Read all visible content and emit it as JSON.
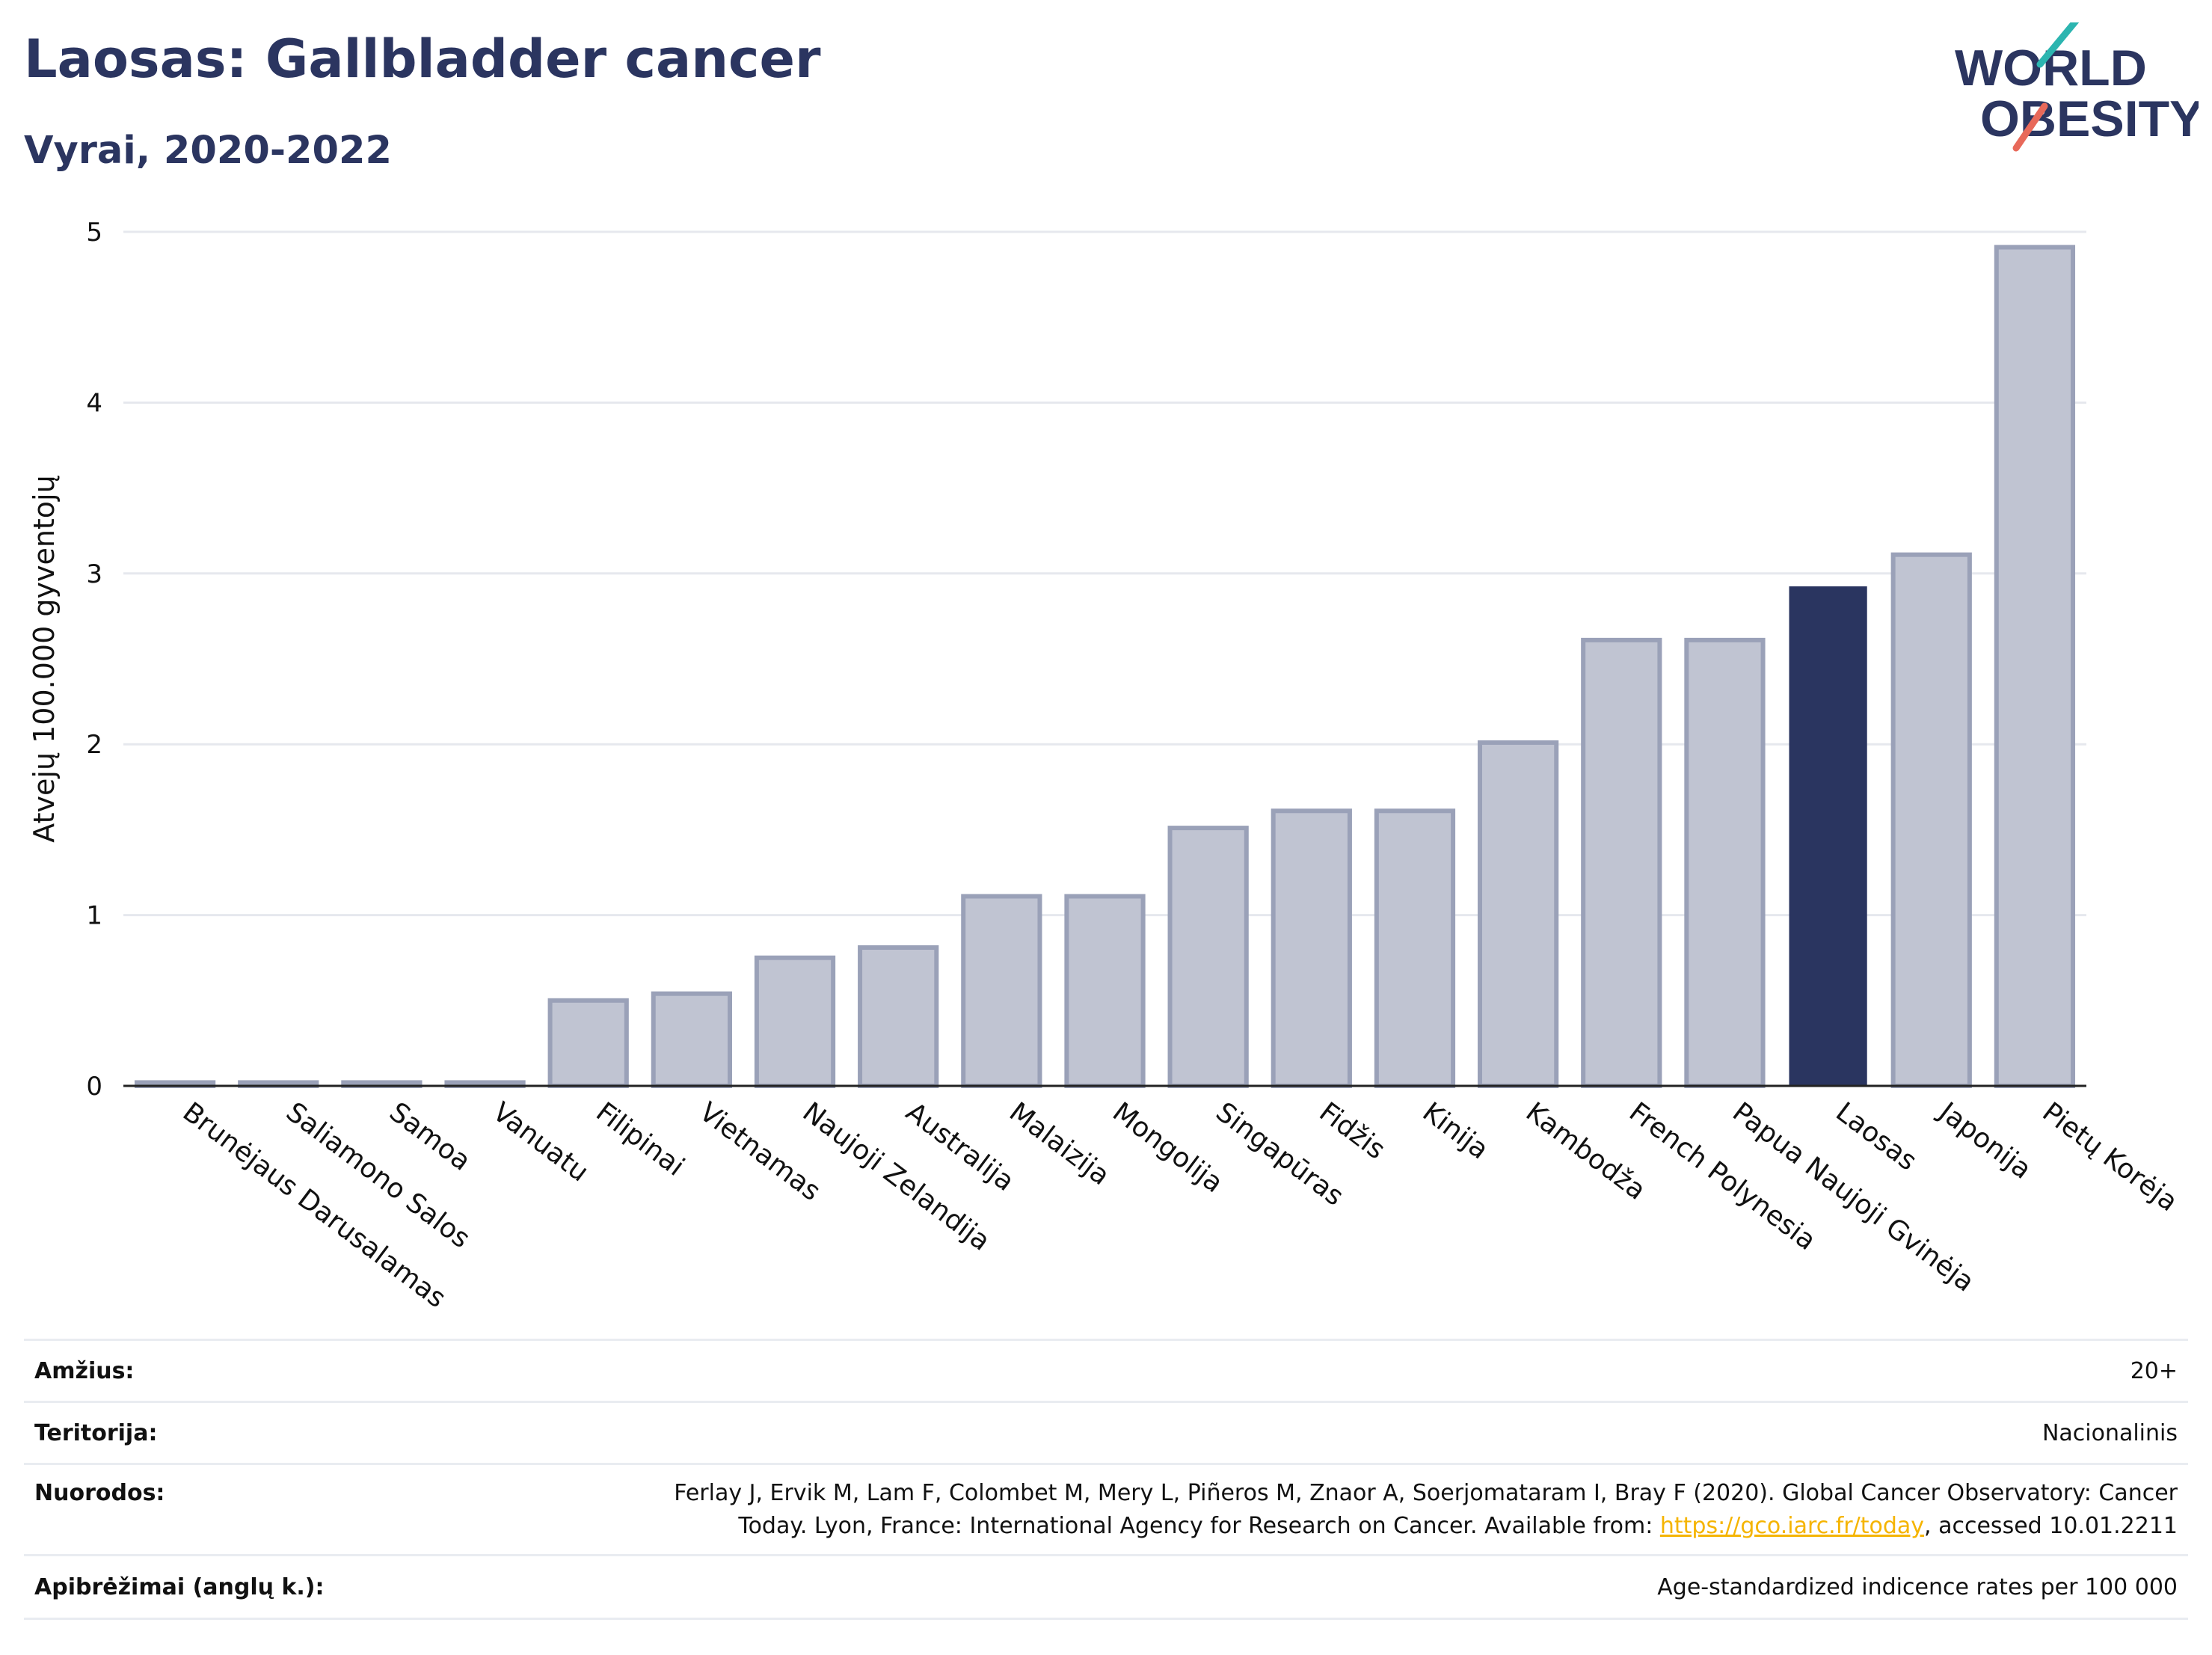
{
  "title": "Laosas: Gallbladder cancer",
  "subtitle": "Vyrai, 2020-2022",
  "logo": {
    "line1": "WORLD",
    "line2": "OBESITY"
  },
  "colors": {
    "highlight": "#2a3560",
    "bar": "#c0c4d2",
    "bar_edge": "#9aa1b8",
    "title": "#2b3560",
    "grid": "#e6e8ee",
    "link": "#f5b400"
  },
  "chart_data": {
    "type": "bar",
    "ylabel": "Atvejų 100.000 gyventojų",
    "ylim": [
      0,
      5
    ],
    "yticks": [
      "0",
      "1",
      "2",
      "3",
      "4",
      "5"
    ],
    "grid": true,
    "highlight": "Laosas",
    "categories": [
      "Brunėjaus Darusalamas",
      "Saliamono Salos",
      "Samoa",
      "Vanuatu",
      "Filipinai",
      "Vietnamas",
      "Naujoji Zelandija",
      "Australija",
      "Malaizija",
      "Mongolija",
      "Singapūras",
      "Fidžis",
      "Kinija",
      "Kambodža",
      "French Polynesia",
      "Papua Naujoji Gvinėja",
      "Laosas",
      "Japonija",
      "Pietų Korėja"
    ],
    "values": [
      0.02,
      0.02,
      0.02,
      0.02,
      0.5,
      0.54,
      0.75,
      0.81,
      1.11,
      1.11,
      1.51,
      1.61,
      1.61,
      2.01,
      2.61,
      2.61,
      2.92,
      3.11,
      4.91
    ]
  },
  "info": {
    "age_label": "Amžius:",
    "age_value": "20+",
    "territory_label": "Teritorija:",
    "territory_value": "Nacionalinis",
    "refs_label": "Nuorodos:",
    "refs_line1": "Ferlay J, Ervik M, Lam F, Colombet M, Mery L, Piñeros M, Znaor A, Soerjomataram I, Bray F (2020). Global Cancer Observatory: Cancer",
    "refs_line2_pre": "Today. Lyon, France: International Agency for Research on Cancer. Available from: ",
    "refs_link": "https://gco.iarc.fr/today",
    "refs_line2_post": ", accessed 10.01.2211",
    "defs_label": "Apibrėžimai (anglų k.):",
    "defs_value": "Age-standardized indicence rates per 100 000"
  }
}
